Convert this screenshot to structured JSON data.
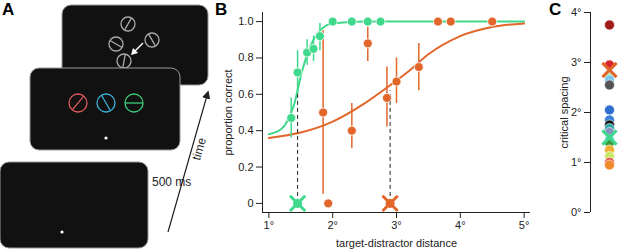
{
  "diagram": {
    "title": "A",
    "interval": "500 ms",
    "axis_label": "time"
  },
  "chart_data": [
    {
      "type": "scatter",
      "title": "B",
      "x_label": "target-distractor distance",
      "y_label": "proportion correct",
      "xlim": [
        0.9,
        5.1
      ],
      "xticks": [
        {
          "value": 1,
          "label": "1°"
        },
        {
          "value": 2,
          "label": "2°"
        },
        {
          "value": 3,
          "label": "3°"
        },
        {
          "value": 4,
          "label": "4°"
        },
        {
          "value": 5,
          "label": "5°"
        }
      ],
      "ylim": [
        -0.05,
        1.05
      ],
      "yticks": [
        0,
        0.2,
        0.4,
        0.6,
        0.8,
        {
          "value": 1,
          "label": "1.0"
        }
      ],
      "series": [
        {
          "color": "#3fd88c",
          "marker": "circle",
          "x": [
            1.35,
            1.45,
            1.6,
            1.7,
            1.8,
            2.0,
            2.3,
            2.55,
            2.75
          ],
          "values": [
            0.47,
            0.72,
            0.83,
            0.85,
            0.92,
            1.0,
            1.0,
            1.0,
            1.0
          ],
          "error_low": [
            0.36,
            0.6,
            0.76,
            0.78,
            0.84,
            null,
            null,
            null,
            null
          ],
          "error_high": [
            0.58,
            0.84,
            0.9,
            0.92,
            0.99,
            null,
            null,
            null,
            null
          ],
          "fit_x": [
            1.0,
            1.2,
            1.3,
            1.4,
            1.5,
            1.6,
            1.7,
            1.8,
            2.0,
            2.5,
            5.0
          ],
          "fit_values": [
            0.38,
            0.41,
            0.46,
            0.55,
            0.7,
            0.82,
            0.9,
            0.95,
            0.99,
            1.0,
            1.0
          ],
          "threshold": {
            "x": 1.45,
            "y": [
              0,
              0.6
            ]
          }
        },
        {
          "color": "#e2662a",
          "marker": "circle",
          "x": [
            1.85,
            1.93,
            2.3,
            2.55,
            2.85,
            3.0,
            3.35,
            3.65,
            3.85,
            4.5
          ],
          "values": [
            0.5,
            0,
            0.4,
            0.88,
            0.58,
            0.67,
            0.75,
            1.0,
            1.0,
            1.0
          ],
          "error_low": [
            0.05,
            null,
            0.3,
            0.78,
            0.42,
            0.55,
            0.62,
            null,
            null,
            null
          ],
          "error_high": [
            0.95,
            null,
            0.55,
            0.97,
            0.75,
            0.8,
            0.88,
            null,
            null,
            null
          ],
          "fit_x": [
            1.0,
            1.5,
            2.0,
            2.5,
            2.9,
            3.2,
            3.5,
            4.0,
            4.5,
            5.0
          ],
          "fit_values": [
            0.36,
            0.39,
            0.45,
            0.55,
            0.65,
            0.73,
            0.82,
            0.92,
            0.97,
            0.99
          ],
          "threshold": {
            "x": 2.9,
            "y": [
              0,
              0.62
            ]
          }
        }
      ]
    },
    {
      "type": "scatter",
      "title": "C",
      "y_label": "critical spacing",
      "ylim": [
        0,
        4
      ],
      "yticks": [
        {
          "value": 0,
          "label": "0°"
        },
        {
          "value": 1,
          "label": "1°"
        },
        {
          "value": 2,
          "label": "2°"
        },
        {
          "value": 3,
          "label": "3°"
        },
        {
          "value": 4,
          "label": "4°"
        }
      ],
      "series": [
        {
          "marker": "circle",
          "values": [
            3.75,
            2.95,
            2.7,
            2.65,
            2.55,
            2.05,
            1.85,
            1.75,
            1.68,
            1.6,
            1.45,
            1.4,
            1.25,
            1.12,
            1.0,
            0.95
          ],
          "colors": [
            "#a01c1c",
            "#d8262a",
            "#a8e6b0",
            "#79c7e8",
            "#555555",
            "#2f6fd0",
            "#3a7fd8",
            "#111111",
            "#2aa6a0",
            "#8a8fc0",
            "#4fd0e0",
            "#3a9a3a",
            "#f0b030",
            "#c8e86a",
            "#e84a4a",
            "#f08a2a"
          ]
        },
        {
          "marker": "cross",
          "values": [
            2.85,
            1.5
          ],
          "colors": [
            "#e2662a",
            "#3fd88c"
          ]
        }
      ]
    }
  ]
}
